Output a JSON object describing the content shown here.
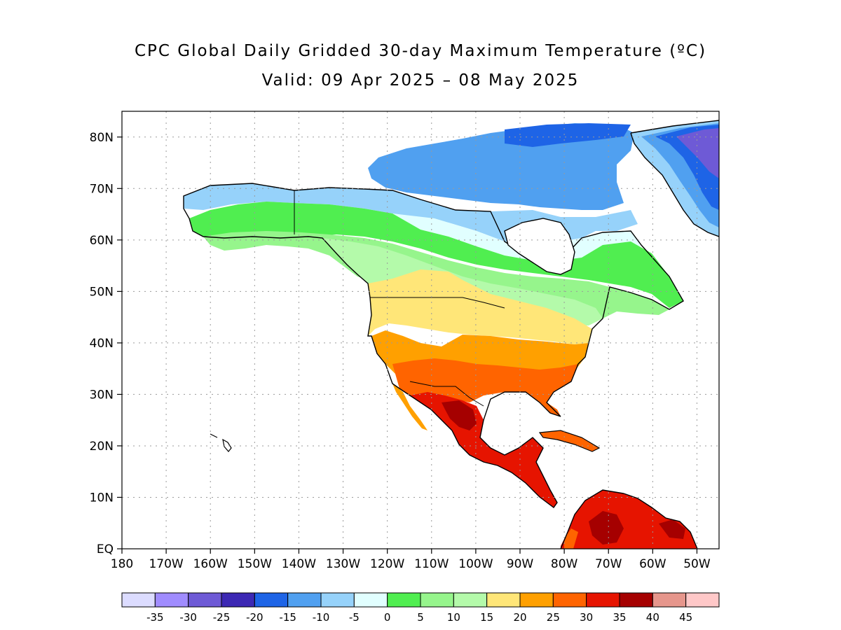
{
  "map": {
    "title": "CPC Global Daily Gridded 30-day Maximum Temperature (ºC)",
    "subtitle": "Valid: 09 Apr 2025 – 08 May 2025",
    "lat_labels": [
      "80N",
      "70N",
      "60N",
      "50N",
      "40N",
      "30N",
      "20N",
      "10N",
      "EQ"
    ],
    "lat_values": [
      80,
      70,
      60,
      50,
      40,
      30,
      20,
      10,
      0
    ],
    "lon_labels": [
      "180",
      "170W",
      "160W",
      "150W",
      "140W",
      "130W",
      "120W",
      "110W",
      "100W",
      "90W",
      "80W",
      "70W",
      "60W",
      "50W"
    ],
    "lon_values": [
      -180,
      -170,
      -160,
      -150,
      -140,
      -130,
      -120,
      -110,
      -100,
      -90,
      -80,
      -70,
      -60,
      -50
    ],
    "extent": {
      "lon_min": -180,
      "lon_max": -45,
      "lat_min": 0,
      "lat_max": 85
    },
    "grid": "dotted",
    "colors": {
      "ocean": "#ffffff",
      "coast": "#000000",
      "grid": "#9a9a9a"
    }
  },
  "colorbar": {
    "labels": [
      "-35",
      "-30",
      "-25",
      "-20",
      "-15",
      "-10",
      "-5",
      "0",
      "5",
      "10",
      "15",
      "20",
      "25",
      "30",
      "35",
      "40",
      "45"
    ],
    "colors": [
      "#dcdcff",
      "#a08cff",
      "#6e5ad6",
      "#3c28b4",
      "#1e64e6",
      "#50a0f0",
      "#96d2fa",
      "#e1ffff",
      "#50ee50",
      "#96f58c",
      "#b4faaa",
      "#ffe678",
      "#ffa000",
      "#ff6400",
      "#e61400",
      "#a50000",
      "#e6968c",
      "#ffc8c8"
    ]
  },
  "regions": [
    {
      "name": "greenland-cold",
      "color": "#1e64e6"
    },
    {
      "name": "greenland-coldest",
      "color": "#6e5ad6"
    },
    {
      "name": "arctic-islands",
      "color": "#50a0f0"
    },
    {
      "name": "arctic-light",
      "color": "#96d2fa"
    },
    {
      "name": "subarctic",
      "color": "#e1ffff"
    },
    {
      "name": "boreal-green",
      "color": "#50ee50"
    },
    {
      "name": "canada-mid",
      "color": "#96f58c"
    },
    {
      "name": "canada-south",
      "color": "#b4faaa"
    },
    {
      "name": "usa-north",
      "color": "#ffe678"
    },
    {
      "name": "usa-central",
      "color": "#ffa000"
    },
    {
      "name": "usa-south",
      "color": "#ff6400"
    },
    {
      "name": "mexico-hot",
      "color": "#e61400"
    },
    {
      "name": "mexico-hottest",
      "color": "#a50000"
    },
    {
      "name": "south-america-hot",
      "color": "#e61400"
    },
    {
      "name": "south-america-hottest",
      "color": "#a50000"
    }
  ]
}
